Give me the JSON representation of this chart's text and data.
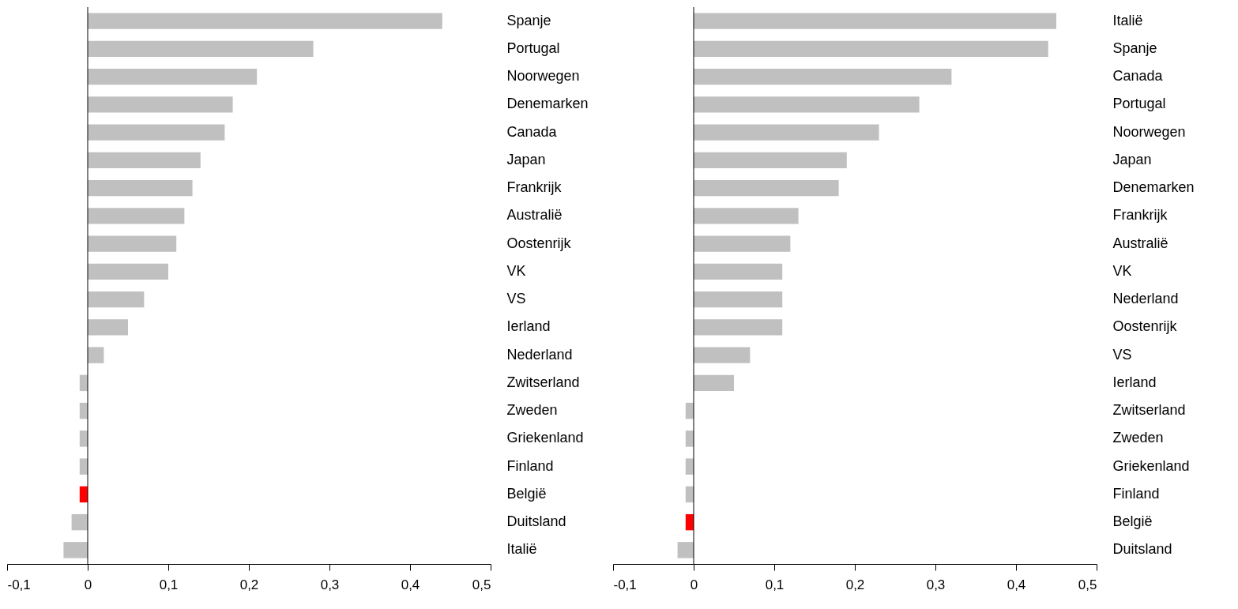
{
  "chart_data": [
    {
      "type": "bar",
      "orientation": "horizontal",
      "categories": [
        "Spanje",
        "Portugal",
        "Noorwegen",
        "Denemarken",
        "Canada",
        "Japan",
        "Frankrijk",
        "Australië",
        "Oostenrijk",
        "VK",
        "VS",
        "Ierland",
        "Nederland",
        "Zwitserland",
        "Zweden",
        "Griekenland",
        "Finland",
        "België",
        "Duitsland",
        "Italië"
      ],
      "values": [
        0.44,
        0.28,
        0.21,
        0.18,
        0.17,
        0.14,
        0.13,
        0.12,
        0.11,
        0.1,
        0.07,
        0.05,
        0.02,
        -0.01,
        -0.01,
        -0.01,
        -0.01,
        -0.01,
        -0.02,
        -0.03
      ],
      "colors": [
        "#c0c0c0",
        "#c0c0c0",
        "#c0c0c0",
        "#c0c0c0",
        "#c0c0c0",
        "#c0c0c0",
        "#c0c0c0",
        "#c0c0c0",
        "#c0c0c0",
        "#c0c0c0",
        "#c0c0c0",
        "#c0c0c0",
        "#c0c0c0",
        "#c0c0c0",
        "#c0c0c0",
        "#c0c0c0",
        "#c0c0c0",
        "#ff0000",
        "#c0c0c0",
        "#c0c0c0"
      ],
      "xlim": [
        -0.1,
        0.5
      ],
      "xticks": [
        {
          "value": -0.1,
          "label": "-0,1"
        },
        0,
        {
          "value": 0.1,
          "label": "0,1"
        },
        {
          "value": 0.2,
          "label": "0,2"
        },
        {
          "value": 0.3,
          "label": "0,3"
        },
        {
          "value": 0.4,
          "label": "0,4"
        },
        {
          "value": 0.5,
          "label": "0,5"
        }
      ],
      "ref_lines": [
        {
          "axis": "x",
          "value": 0,
          "color": "#000000"
        }
      ]
    },
    {
      "type": "bar",
      "orientation": "horizontal",
      "categories": [
        "Italië",
        "Spanje",
        "Canada",
        "Portugal",
        "Noorwegen",
        "Japan",
        "Denemarken",
        "Frankrijk",
        "Australië",
        "VK",
        "Nederland",
        "Oostenrijk",
        "VS",
        "Ierland",
        "Zwitserland",
        "Zweden",
        "Griekenland",
        "Finland",
        "België",
        "Duitsland"
      ],
      "values": [
        0.45,
        0.44,
        0.32,
        0.28,
        0.23,
        0.19,
        0.18,
        0.13,
        0.12,
        0.11,
        0.11,
        0.11,
        0.07,
        0.05,
        -0.01,
        -0.01,
        -0.01,
        -0.01,
        -0.01,
        -0.02
      ],
      "colors": [
        "#c0c0c0",
        "#c0c0c0",
        "#c0c0c0",
        "#c0c0c0",
        "#c0c0c0",
        "#c0c0c0",
        "#c0c0c0",
        "#c0c0c0",
        "#c0c0c0",
        "#c0c0c0",
        "#c0c0c0",
        "#c0c0c0",
        "#c0c0c0",
        "#c0c0c0",
        "#c0c0c0",
        "#c0c0c0",
        "#c0c0c0",
        "#c0c0c0",
        "#ff0000",
        "#c0c0c0"
      ],
      "xlim": [
        -0.1,
        0.5
      ],
      "xticks": [
        {
          "value": -0.1,
          "label": "-0,1"
        },
        0,
        {
          "value": 0.1,
          "label": "0,1"
        },
        {
          "value": 0.2,
          "label": "0,2"
        },
        {
          "value": 0.3,
          "label": "0,3"
        },
        {
          "value": 0.4,
          "label": "0,4"
        },
        {
          "value": 0.5,
          "label": "0,5"
        }
      ],
      "ref_lines": [
        {
          "axis": "x",
          "value": 0,
          "color": "#000000"
        }
      ]
    }
  ]
}
